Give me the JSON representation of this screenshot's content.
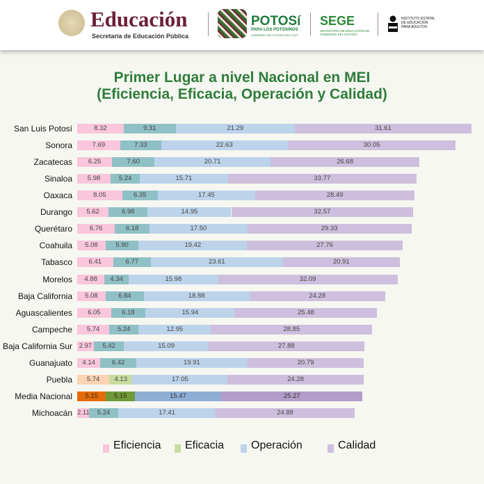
{
  "header": {
    "edu_title": "Educación",
    "edu_subtitle": "Secretaría de Educación Pública",
    "potosi_title": "POTOSí",
    "potosi_subtitle": "PARA LOS POTOSINOS",
    "potosi_subtitle2": "GOBIERNO DEL ESTADO 2021-2027",
    "sege_title": "SEGE",
    "sege_subtitle": "SECRETARÍA DE EDUCACIÓN DE GOBIERNO DEL ESTADO",
    "ieea": "INSTITUTO ESTATAL DE EDUCACIÓN PARA ADULTOS"
  },
  "chart_data": {
    "type": "bar",
    "orientation": "horizontal",
    "stacked": true,
    "title": "Primer Lugar a nivel Nacional en MEI",
    "subtitle": "(Eficiencia, Eficacia, Operación y Calidad)",
    "categories": [
      "San Luis Potosí",
      "Sonora",
      "Zacatecas",
      "Sinaloa",
      "Oaxaca",
      "Durango",
      "Querétaro",
      "Coahuila",
      "Tabasco",
      "Morelos",
      "Baja California",
      "Aguascalientes",
      "Campeche",
      "Baja California Sur",
      "Guanajuato",
      "Puebla",
      "Media Nacional",
      "Michoacán"
    ],
    "series": [
      {
        "name": "Eficiencia",
        "color": "#f9c6dc",
        "values": [
          8.32,
          7.69,
          6.25,
          5.98,
          8.05,
          5.62,
          6.76,
          5.08,
          6.41,
          4.88,
          5.08,
          6.05,
          5.74,
          2.97,
          4.14,
          5.74,
          5.15,
          2.11
        ]
      },
      {
        "name": "Eficacia",
        "color": "#8fc0c6",
        "values": [
          9.31,
          7.33,
          7.6,
          5.24,
          6.35,
          6.98,
          6.18,
          5.9,
          6.77,
          4.34,
          6.84,
          6.18,
          5.24,
          5.42,
          6.42,
          4.13,
          5.15,
          5.24
        ]
      },
      {
        "name": "Operación",
        "color": "#bcd3ea",
        "values": [
          21.29,
          22.63,
          20.71,
          15.71,
          17.45,
          14.95,
          17.5,
          19.42,
          23.61,
          15.98,
          18.88,
          15.94,
          12.95,
          15.09,
          19.91,
          17.05,
          15.47,
          17.41
        ]
      },
      {
        "name": "Calidad",
        "color": "#cdbfdd",
        "values": [
          31.61,
          30.05,
          26.68,
          33.77,
          28.49,
          32.57,
          29.33,
          27.76,
          20.91,
          32.09,
          24.28,
          25.48,
          28.85,
          27.88,
          20.79,
          24.28,
          25.27,
          24.88
        ]
      }
    ],
    "highlight_colors": {
      "Puebla": [
        "#fbd4b4",
        "#c9dca0",
        "#bcd3ea",
        "#cdbfdd"
      ],
      "Media Nacional": [
        "#e36c0a",
        "#6e9a3a",
        "#8faed6",
        "#b29dc8"
      ]
    },
    "legend_colors": [
      "#f9c6dc",
      "#c9dca0",
      "#bcd3ea",
      "#cdbfdd"
    ],
    "legend": "bottom",
    "grid": false,
    "data_labels": true
  }
}
